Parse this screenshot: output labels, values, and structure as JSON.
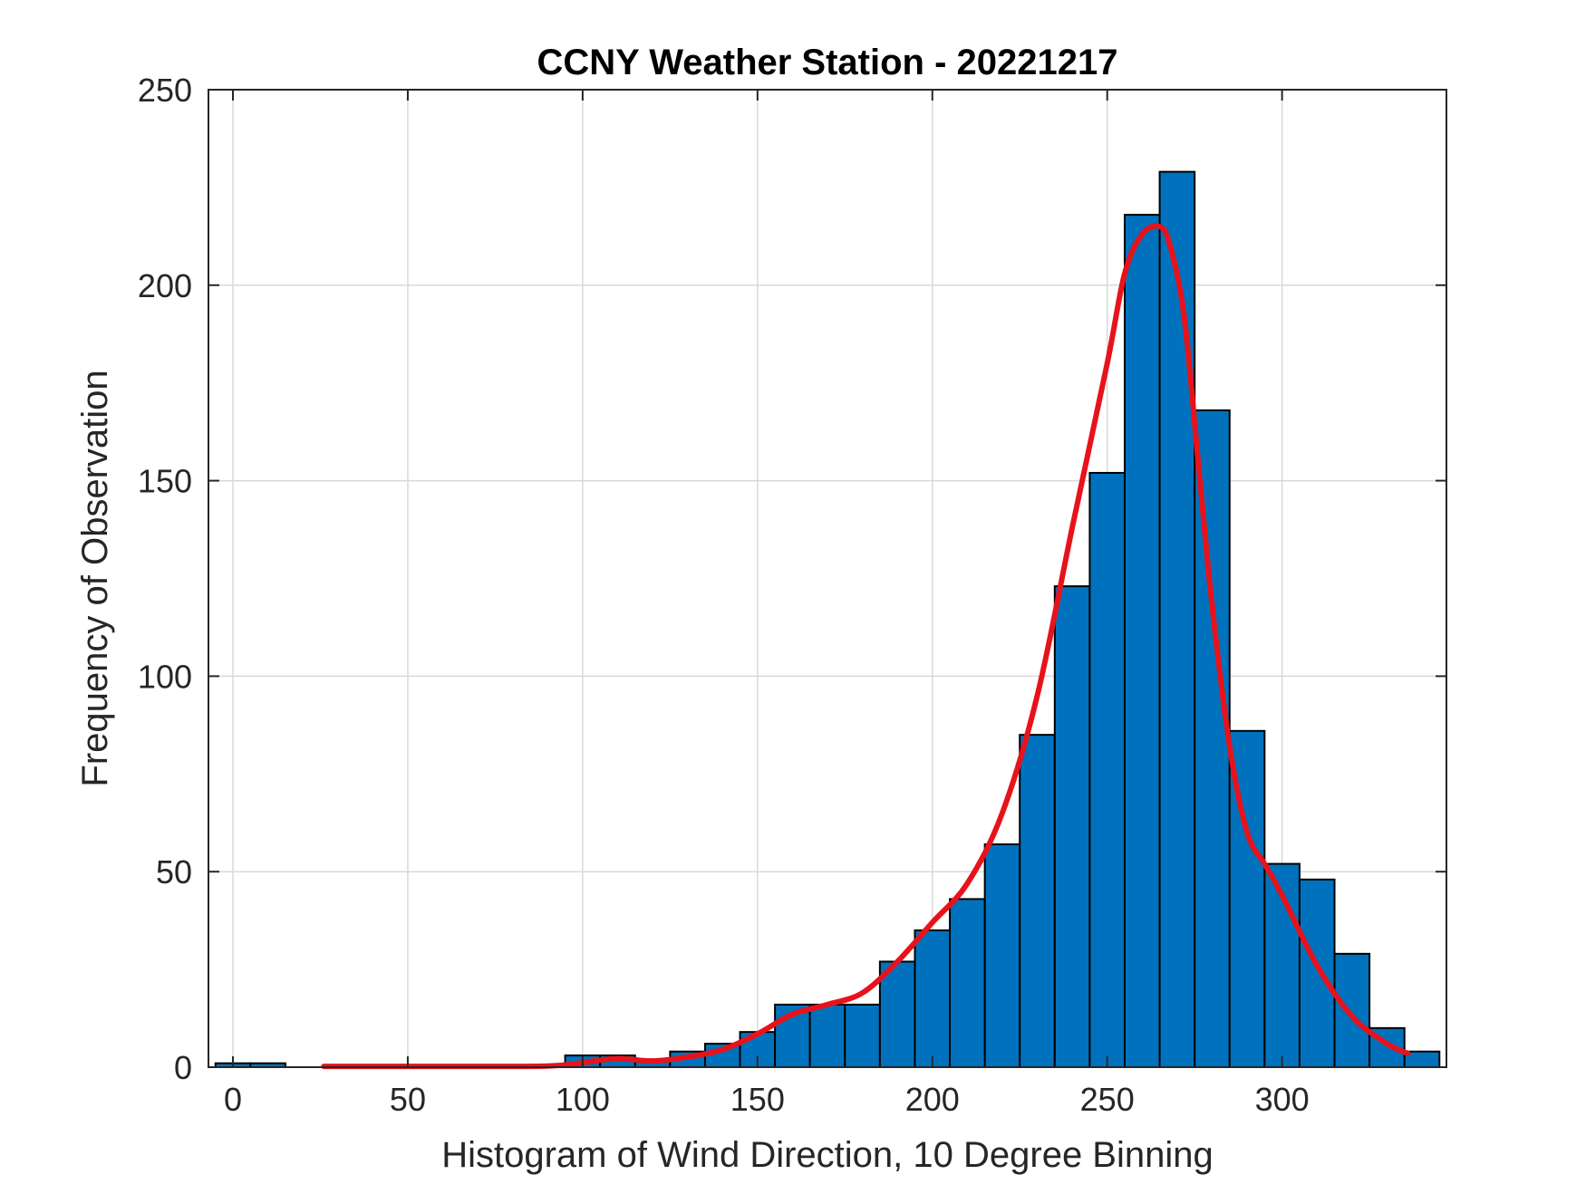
{
  "chart_data": {
    "type": "bar",
    "title": "CCNY Weather Station - 20221217",
    "xlabel": "Histogram of Wind Direction, 10 Degree Binning",
    "ylabel": "Frequency of Observation",
    "xlim": [
      -7,
      347
    ],
    "ylim": [
      0,
      250
    ],
    "xticks": [
      0,
      50,
      100,
      150,
      200,
      250,
      300
    ],
    "yticks": [
      0,
      50,
      100,
      150,
      200,
      250
    ],
    "grid": true,
    "bin_width": 10,
    "bins": [
      {
        "start": 0,
        "value": 1
      },
      {
        "start": 10,
        "value": 1
      },
      {
        "start": 100,
        "value": 3
      },
      {
        "start": 110,
        "value": 3
      },
      {
        "start": 120,
        "value": 2
      },
      {
        "start": 130,
        "value": 4
      },
      {
        "start": 140,
        "value": 6
      },
      {
        "start": 150,
        "value": 9
      },
      {
        "start": 160,
        "value": 16
      },
      {
        "start": 170,
        "value": 16
      },
      {
        "start": 180,
        "value": 16
      },
      {
        "start": 190,
        "value": 27
      },
      {
        "start": 200,
        "value": 35
      },
      {
        "start": 210,
        "value": 43
      },
      {
        "start": 220,
        "value": 57
      },
      {
        "start": 230,
        "value": 85
      },
      {
        "start": 240,
        "value": 123
      },
      {
        "start": 250,
        "value": 152
      },
      {
        "start": 260,
        "value": 218
      },
      {
        "start": 270,
        "value": 229
      },
      {
        "start": 280,
        "value": 168
      },
      {
        "start": 290,
        "value": 86
      },
      {
        "start": 300,
        "value": 52
      },
      {
        "start": 310,
        "value": 48
      },
      {
        "start": 320,
        "value": 29
      },
      {
        "start": 330,
        "value": 10
      },
      {
        "start": 340,
        "value": 4
      }
    ],
    "fit_curve": {
      "x": [
        26,
        60,
        90,
        100,
        110,
        120,
        130,
        140,
        150,
        160,
        170,
        180,
        190,
        200,
        210,
        220,
        230,
        240,
        250,
        255,
        260,
        265,
        268,
        272,
        276,
        280,
        285,
        290,
        295,
        300,
        310,
        320,
        330,
        336
      ],
      "y": [
        0.2,
        0.2,
        0.3,
        1.2,
        2.2,
        1.6,
        2.6,
        4.5,
        8.5,
        13.5,
        16,
        19,
        27,
        37,
        47,
        65,
        95,
        138,
        180,
        203,
        213,
        215,
        210,
        192,
        155,
        118,
        82,
        60,
        52,
        44,
        26,
        13,
        6,
        3.5
      ]
    },
    "colors": {
      "bar_fill": "#0072BD",
      "bar_edge": "#000000",
      "fit_line": "#E8121B",
      "grid": "#D9D9D9",
      "axes": "#262626"
    }
  }
}
